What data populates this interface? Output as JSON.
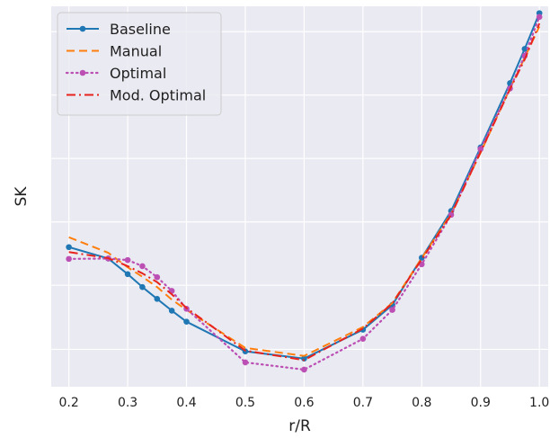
{
  "chart_data": {
    "type": "line",
    "title": "",
    "xlabel": "r/R",
    "ylabel": "SK",
    "xlim": [
      0.17,
      1.015
    ],
    "ylim": [
      0,
      1
    ],
    "xticks": [
      0.2,
      0.3,
      0.4,
      0.5,
      0.6,
      0.7,
      0.8,
      0.9,
      1.0
    ],
    "xtick_labels": [
      "0.2",
      "0.3",
      "0.4",
      "0.5",
      "0.6",
      "0.7",
      "0.8",
      "0.9",
      "1.0"
    ],
    "yticks": [
      0.0983,
      0.2667,
      0.4333,
      0.6,
      0.7667,
      0.9333
    ],
    "grid": true,
    "legend_position": "upper-left",
    "background": "#eaeaf2",
    "series": [
      {
        "name": "Baseline",
        "color": "#1f77b4",
        "style": "solid",
        "marker": "circle",
        "x": [
          0.2,
          0.267,
          0.3,
          0.325,
          0.35,
          0.375,
          0.4,
          0.5,
          0.6,
          0.7,
          0.75,
          0.8,
          0.85,
          0.9,
          0.95,
          0.975,
          1.0
        ],
        "y": [
          0.367,
          0.337,
          0.296,
          0.262,
          0.231,
          0.2,
          0.171,
          0.093,
          0.074,
          0.15,
          0.215,
          0.339,
          0.462,
          0.629,
          0.798,
          0.888,
          0.982
        ]
      },
      {
        "name": "Manual",
        "color": "#ff7f0e",
        "style": "dashed",
        "marker": "none",
        "x": [
          0.2,
          0.267,
          0.3,
          0.325,
          0.35,
          0.375,
          0.4,
          0.5,
          0.6,
          0.7,
          0.75,
          0.8,
          0.85,
          0.9,
          0.95,
          0.975,
          1.0
        ],
        "y": [
          0.393,
          0.352,
          0.314,
          0.289,
          0.262,
          0.229,
          0.202,
          0.102,
          0.081,
          0.157,
          0.22,
          0.338,
          0.455,
          0.615,
          0.784,
          0.865,
          0.947
        ]
      },
      {
        "name": "Optimal",
        "color": "#bc4fb4",
        "style": "dotted",
        "marker": "circle",
        "x": [
          0.2,
          0.267,
          0.3,
          0.325,
          0.35,
          0.375,
          0.4,
          0.5,
          0.6,
          0.7,
          0.75,
          0.8,
          0.85,
          0.9,
          0.95,
          0.975,
          1.0
        ],
        "y": [
          0.336,
          0.337,
          0.333,
          0.317,
          0.288,
          0.252,
          0.205,
          0.064,
          0.045,
          0.126,
          0.202,
          0.322,
          0.452,
          0.625,
          0.784,
          0.87,
          0.972
        ]
      },
      {
        "name": "Mod. Optimal",
        "color": "#e8231d",
        "style": "dashdot",
        "marker": "none",
        "x": [
          0.2,
          0.267,
          0.3,
          0.325,
          0.35,
          0.375,
          0.4,
          0.5,
          0.6,
          0.7,
          0.75,
          0.8,
          0.85,
          0.9,
          0.95,
          0.975,
          1.0
        ],
        "y": [
          0.354,
          0.338,
          0.317,
          0.298,
          0.275,
          0.243,
          0.207,
          0.095,
          0.07,
          0.153,
          0.219,
          0.335,
          0.452,
          0.617,
          0.782,
          0.86,
          0.955
        ]
      }
    ]
  }
}
